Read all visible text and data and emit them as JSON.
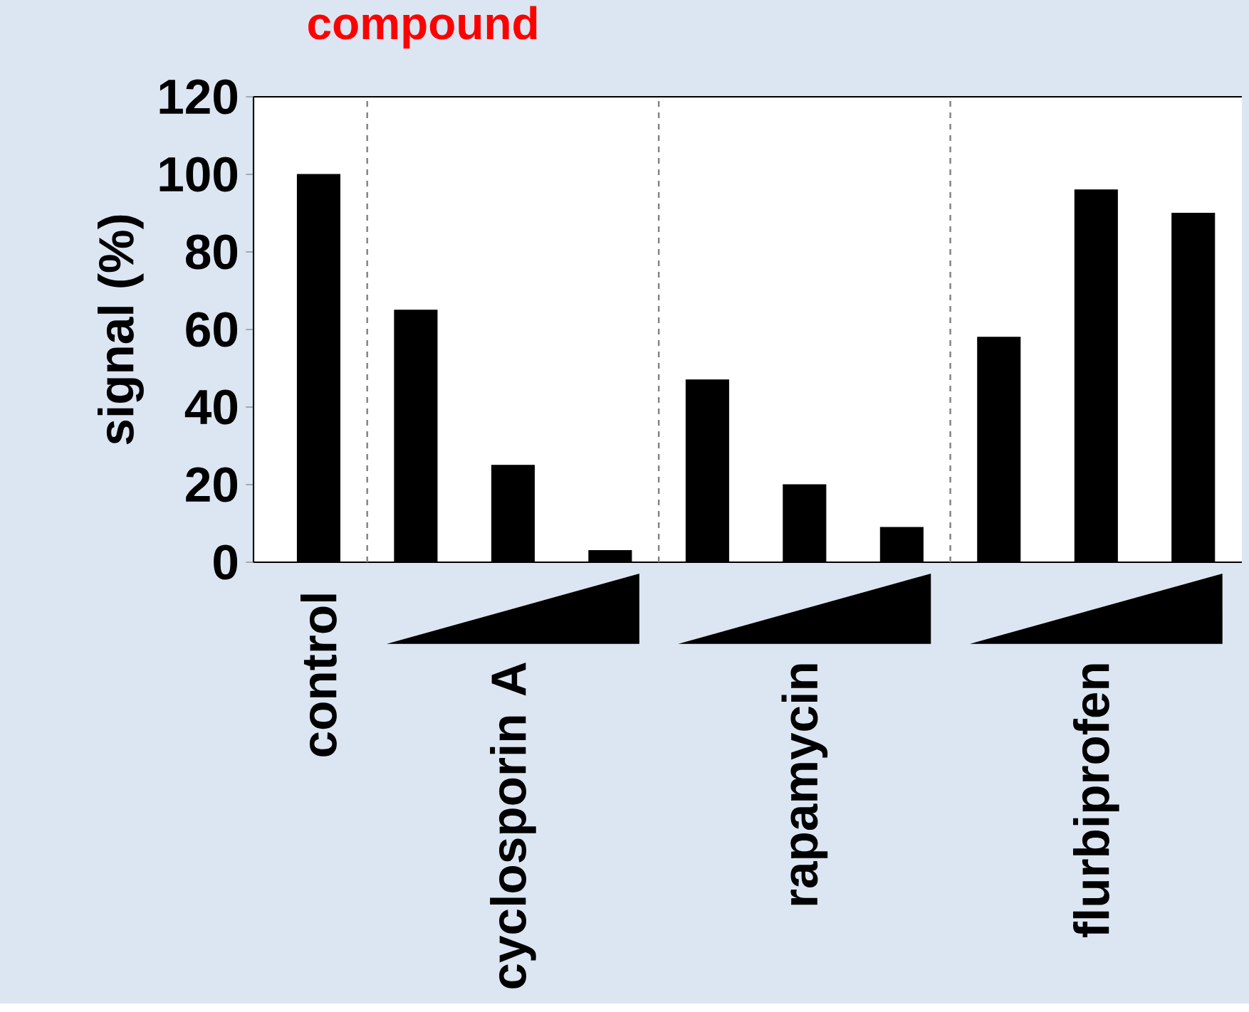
{
  "chart_data": {
    "type": "bar",
    "title": "compound",
    "ylabel": "signal (%)",
    "categories": [
      "control",
      null,
      "cyclosporin A",
      null,
      null,
      "rapamycin",
      null,
      null,
      "flurbiprofen",
      null
    ],
    "values": [
      100,
      65,
      25,
      3,
      47,
      20,
      9,
      58,
      96,
      90
    ],
    "color": "#000000",
    "ylim": [
      0,
      120
    ],
    "yticks": [
      0,
      20,
      40,
      60,
      80,
      100,
      120
    ]
  }
}
